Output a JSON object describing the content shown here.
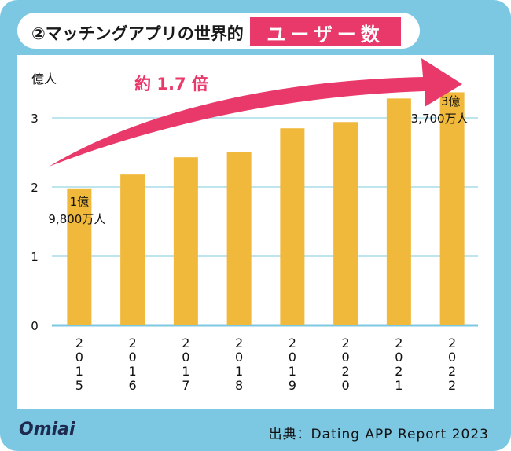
{
  "header": {
    "title": "②マッチングアプリの世界的",
    "highlight": "ユーザー数"
  },
  "footer": {
    "logo": "Omiai",
    "source": "出典：Dating APP Report 2023"
  },
  "chart_data": {
    "type": "bar",
    "ylabel": "億人",
    "ylim": [
      0,
      3.6
    ],
    "yticks": [
      0,
      1,
      2,
      3
    ],
    "categories": [
      "2015",
      "2016",
      "2017",
      "2018",
      "2019",
      "2020",
      "2021",
      "2022"
    ],
    "values": [
      1.98,
      2.18,
      2.43,
      2.51,
      2.85,
      2.94,
      3.28,
      3.37
    ],
    "annotations": {
      "growth": "約 1.7 倍",
      "first_line1": "1億",
      "first_line2": "9,800万人",
      "last_line1": "3億",
      "last_line2": "3,700万人"
    },
    "colors": {
      "bar": "#f0b93b",
      "grid": "#a9dbe9",
      "baseline": "#7cc8e3",
      "arrow": "#e8396a",
      "frame": "#7cc8e3",
      "highlight": "#e8396a"
    }
  }
}
